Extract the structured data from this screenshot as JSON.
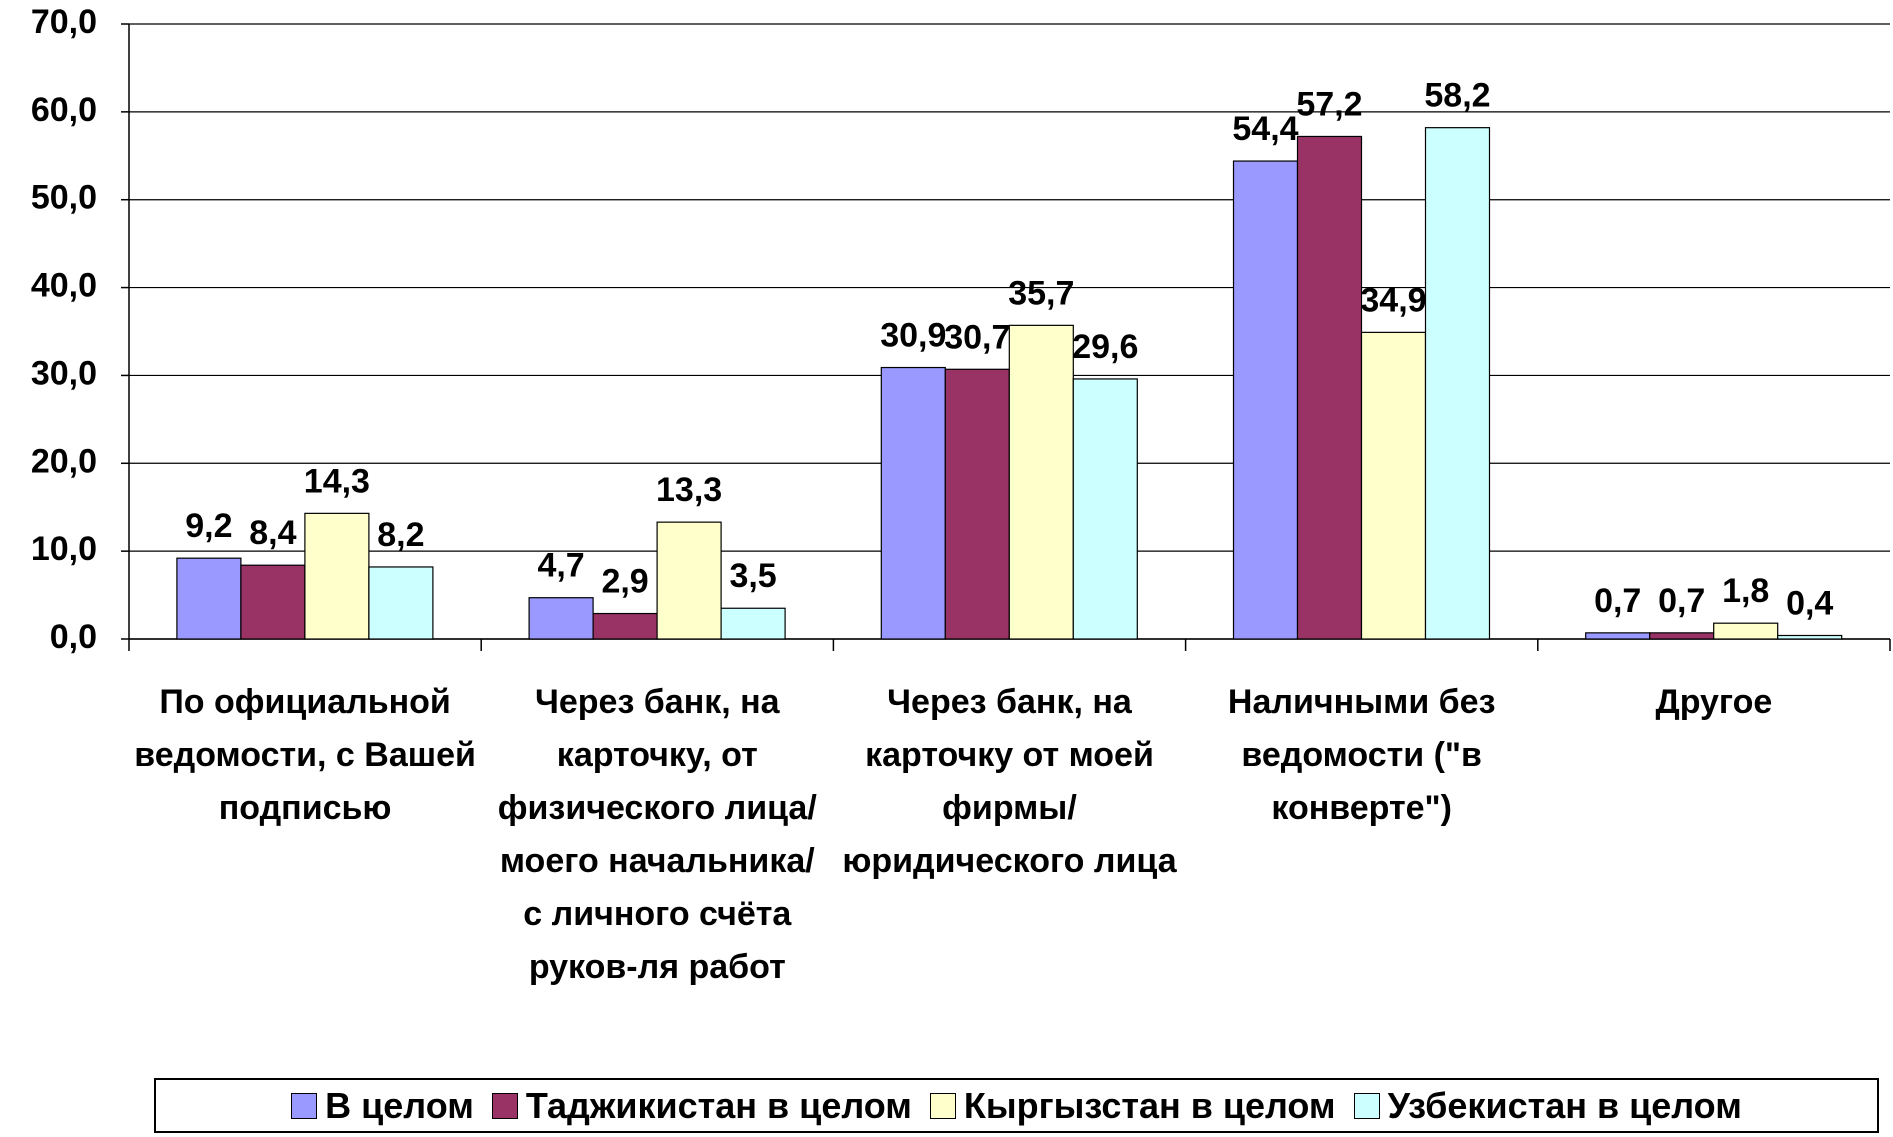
{
  "chart_data": {
    "type": "bar",
    "categories": [
      "По официальной ведомости, с Вашей подписью",
      "Через банк, на карточку, от физического лица/моего начальника/ с личного счёта руков-ля работ",
      "Через банк, на карточку от моей фирмы/ юридического лица",
      "Наличными без ведомости (\"в конверте\")",
      "Другое"
    ],
    "series": [
      {
        "name": "В целом",
        "color": "#9999ff",
        "values": [
          9.2,
          4.7,
          30.9,
          54.4,
          0.7
        ],
        "value_labels": [
          "9,2",
          "4,7",
          "30,9",
          "54,4",
          "0,7"
        ]
      },
      {
        "name": "Таджикистан в целом",
        "color": "#993366",
        "values": [
          8.4,
          2.9,
          30.7,
          57.2,
          0.7
        ],
        "value_labels": [
          "8,4",
          "2,9",
          "30,7",
          "57,2",
          "0,7"
        ]
      },
      {
        "name": "Кыргызстан в целом",
        "color": "#ffffcc",
        "values": [
          14.3,
          13.3,
          35.7,
          34.9,
          1.8
        ],
        "value_labels": [
          "14,3",
          "13,3",
          "35,7",
          "34,9",
          "1,8"
        ]
      },
      {
        "name": "Узбекистан в целом",
        "color": "#ccffff",
        "values": [
          8.2,
          3.5,
          29.6,
          58.2,
          0.4
        ],
        "value_labels": [
          "8,2",
          "3,5",
          "29,6",
          "58,2",
          "0,4"
        ]
      }
    ],
    "ylim": [
      0,
      70
    ],
    "yticks": [
      {
        "value": 0,
        "label": "0,0"
      },
      {
        "value": 10,
        "label": "10,0"
      },
      {
        "value": 20,
        "label": "20,0"
      },
      {
        "value": 30,
        "label": "30,0"
      },
      {
        "value": 40,
        "label": "40,0"
      },
      {
        "value": 50,
        "label": "50,0"
      },
      {
        "value": 60,
        "label": "60,0"
      },
      {
        "value": 70,
        "label": "70,0"
      }
    ],
    "grid": true,
    "legend": "bottom"
  }
}
